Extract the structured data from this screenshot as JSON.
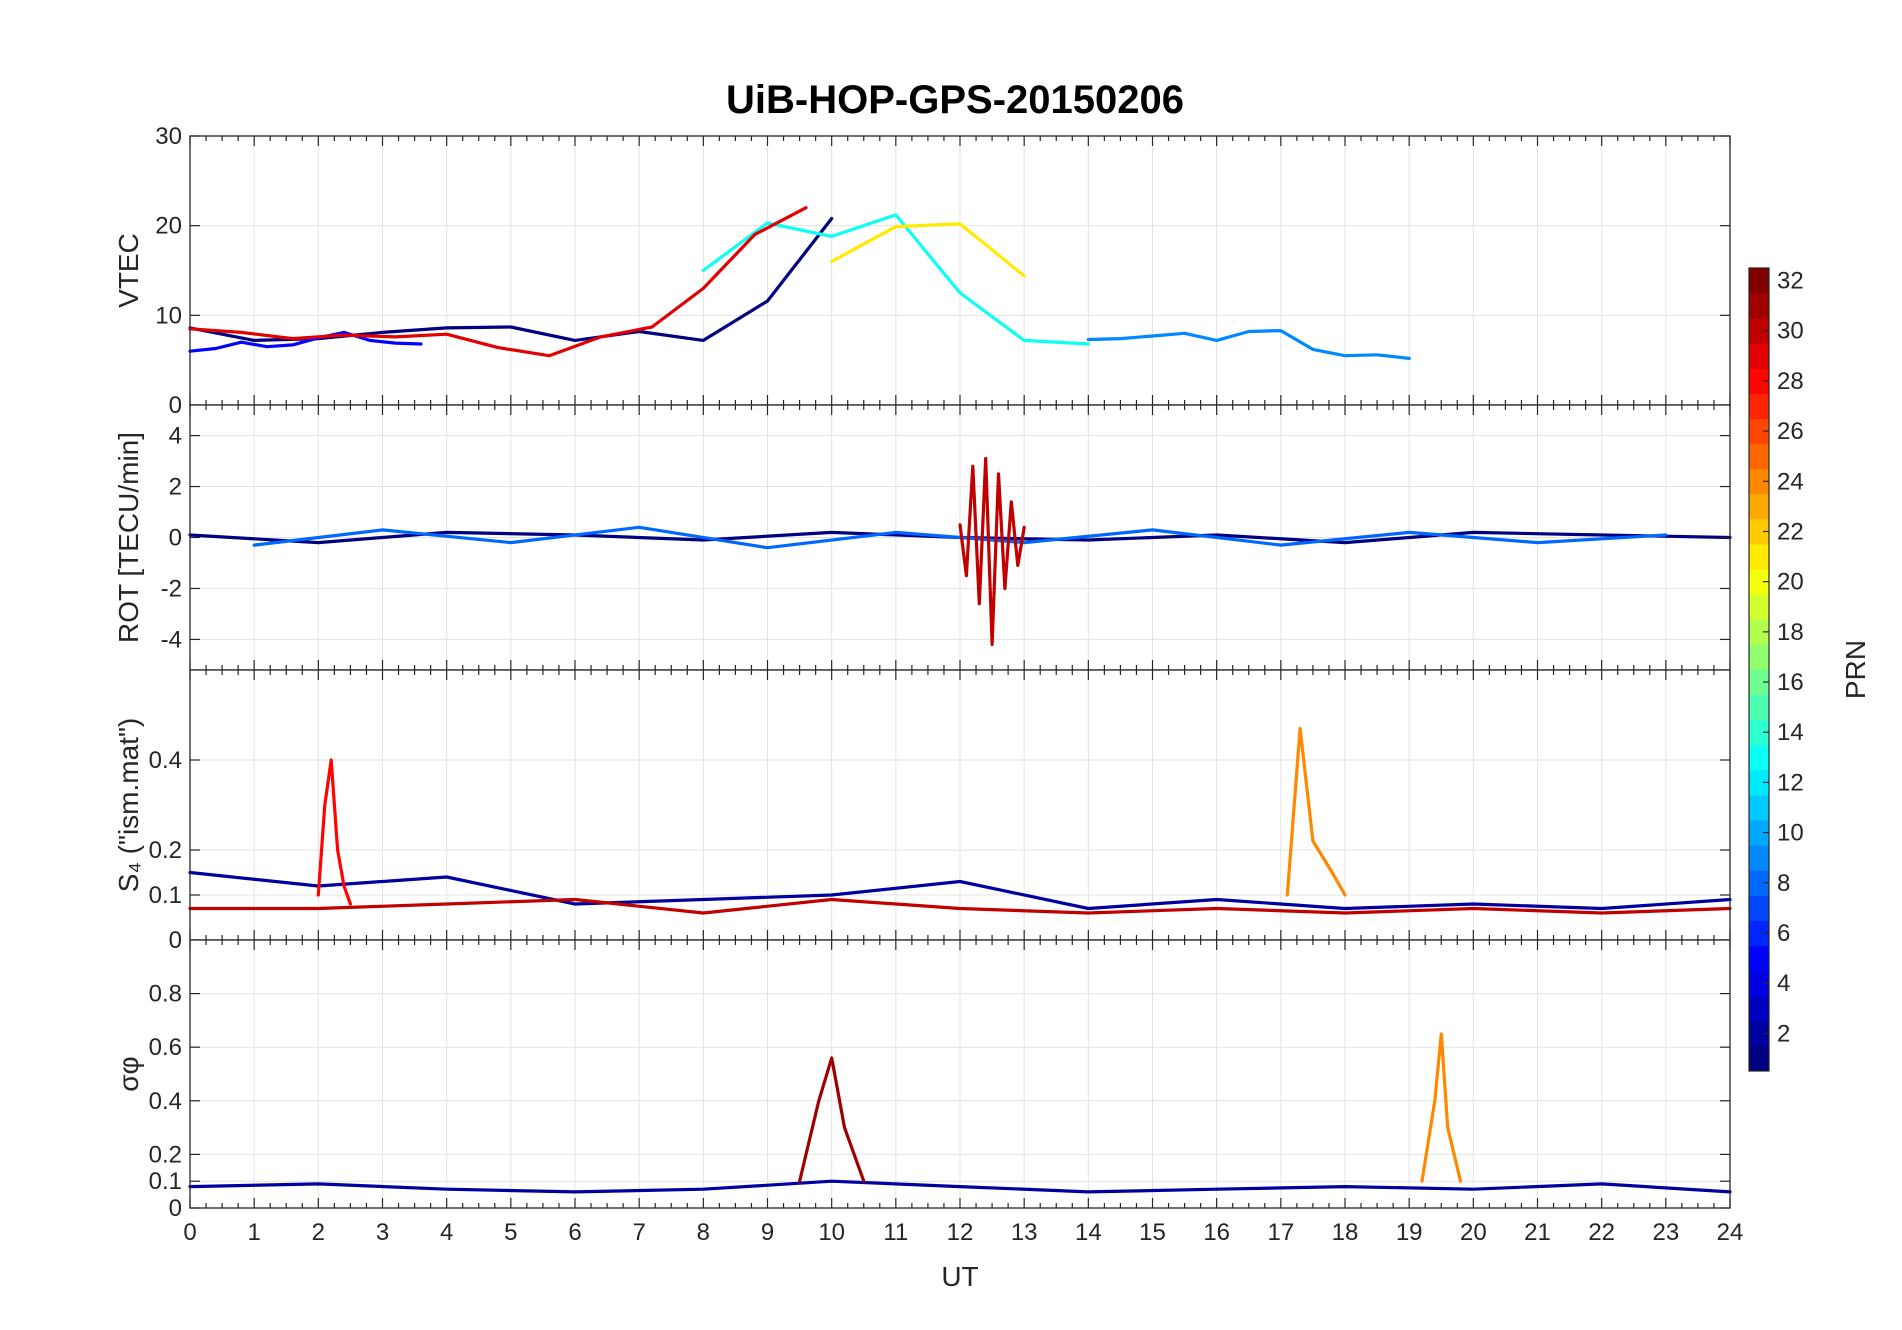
{
  "figure": {
    "title": "UiB-HOP-GPS-20150206",
    "colors": {
      "background": "#ffffff",
      "axes": "#262626",
      "grid": "#e3e3e3"
    }
  },
  "chart_data": [
    {
      "type": "line",
      "panel": "VTEC",
      "ylabel": "VTEC",
      "xlabel": "",
      "xlim": [
        0,
        24
      ],
      "ylim": [
        0,
        30
      ],
      "yticks": [
        0,
        10,
        20,
        30
      ],
      "grid": true,
      "series": [
        {
          "prn": 1,
          "x": [
            0.0,
            1.0,
            2.0,
            3.0,
            4.0,
            5.0,
            6.0,
            7.0,
            8.0,
            9.0,
            10.0
          ],
          "y": [
            8.6,
            7.2,
            7.4,
            8.1,
            8.6,
            8.7,
            7.2,
            8.2,
            7.2,
            11.6,
            20.8
          ]
        },
        {
          "prn": 5,
          "x": [
            0.0,
            0.4,
            0.8,
            1.2,
            1.6,
            2.0,
            2.4,
            2.8,
            3.2,
            3.6
          ],
          "y": [
            6.0,
            6.3,
            7.0,
            6.5,
            6.7,
            7.5,
            8.1,
            7.2,
            6.9,
            6.8
          ]
        },
        {
          "prn": 9,
          "x": [
            14.0,
            14.5,
            15.0,
            15.5,
            16.0,
            16.5,
            17.0,
            17.5,
            18.0,
            18.5,
            19.0
          ],
          "y": [
            7.3,
            7.4,
            7.7,
            8.0,
            7.2,
            8.2,
            8.3,
            6.2,
            5.5,
            5.6,
            5.2
          ]
        },
        {
          "prn": 13,
          "x": [
            8.0,
            9.0,
            10.0,
            11.0,
            12.0,
            13.0,
            14.0
          ],
          "y": [
            15.0,
            20.3,
            18.8,
            21.2,
            12.5,
            7.2,
            6.8
          ]
        },
        {
          "prn": 21,
          "x": [
            10.0,
            11.0,
            12.0,
            13.0
          ],
          "y": [
            16.0,
            19.9,
            20.2,
            14.4
          ]
        },
        {
          "prn": 29,
          "x": [
            0.0,
            0.8,
            1.6,
            2.4,
            3.2,
            4.0,
            4.8,
            5.6,
            6.4,
            7.2,
            8.0,
            8.8,
            9.6
          ],
          "y": [
            8.5,
            8.1,
            7.4,
            7.8,
            7.6,
            7.9,
            6.4,
            5.5,
            7.6,
            8.7,
            13.0,
            19.0,
            22.0
          ]
        }
      ]
    },
    {
      "type": "line",
      "panel": "ROT",
      "ylabel": "ROT [TECU/min]",
      "xlabel": "",
      "xlim": [
        0,
        24
      ],
      "ylim": [
        -5.2,
        5.2
      ],
      "yticks": [
        -4,
        -2,
        0,
        2,
        4
      ],
      "grid": true,
      "series": [
        {
          "prn": 1,
          "x": [
            0,
            2,
            4,
            6,
            8,
            10,
            12,
            14,
            16,
            18,
            20,
            22,
            24
          ],
          "y": [
            0.1,
            -0.2,
            0.2,
            0.1,
            -0.1,
            0.2,
            0.0,
            -0.1,
            0.1,
            -0.2,
            0.2,
            0.1,
            0.0
          ]
        },
        {
          "prn": 8,
          "x": [
            1,
            3,
            5,
            7,
            9,
            11,
            13,
            15,
            17,
            19,
            21,
            23
          ],
          "y": [
            -0.3,
            0.3,
            -0.2,
            0.4,
            -0.4,
            0.2,
            -0.2,
            0.3,
            -0.3,
            0.2,
            -0.2,
            0.1
          ]
        },
        {
          "prn": 30,
          "x": [
            12.0,
            12.1,
            12.2,
            12.3,
            12.4,
            12.5,
            12.6,
            12.7,
            12.8,
            12.9,
            13.0
          ],
          "y": [
            0.5,
            -1.5,
            2.8,
            -2.6,
            3.1,
            -4.2,
            2.5,
            -2.0,
            1.4,
            -1.1,
            0.4
          ]
        }
      ]
    },
    {
      "type": "line",
      "panel": "S4",
      "ylabel": "S₄ (\"ism.mat\")",
      "xlabel": "",
      "xlim": [
        0,
        24
      ],
      "ylim": [
        0,
        0.6
      ],
      "yticks": [
        0,
        0.1,
        0.2,
        0.4
      ],
      "grid": true,
      "series": [
        {
          "prn": 2,
          "x": [
            0,
            2,
            4,
            6,
            8,
            10,
            12,
            14,
            16,
            18,
            20,
            22,
            24
          ],
          "y": [
            0.15,
            0.12,
            0.14,
            0.08,
            0.09,
            0.1,
            0.13,
            0.07,
            0.09,
            0.07,
            0.08,
            0.07,
            0.09
          ]
        },
        {
          "prn": 28,
          "x": [
            2.0,
            2.1,
            2.2,
            2.3,
            2.4,
            2.5
          ],
          "y": [
            0.1,
            0.3,
            0.4,
            0.2,
            0.12,
            0.08
          ]
        },
        {
          "prn": 24,
          "x": [
            17.1,
            17.3,
            17.5,
            17.8,
            18.0
          ],
          "y": [
            0.1,
            0.47,
            0.22,
            0.15,
            0.1
          ]
        },
        {
          "prn": 30,
          "x": [
            0,
            2,
            4,
            6,
            8,
            10,
            12,
            14,
            16,
            18,
            20,
            22,
            24
          ],
          "y": [
            0.07,
            0.07,
            0.08,
            0.09,
            0.06,
            0.09,
            0.07,
            0.06,
            0.07,
            0.06,
            0.07,
            0.06,
            0.07
          ]
        }
      ]
    },
    {
      "type": "line",
      "panel": "sigma_phi",
      "ylabel": "σφ",
      "xlabel": "UT",
      "xlim": [
        0,
        24
      ],
      "ylim": [
        0,
        1
      ],
      "yticks": [
        0,
        0.1,
        0.2,
        0.4,
        0.6,
        0.8
      ],
      "xticks": [
        0,
        1,
        2,
        3,
        4,
        5,
        6,
        7,
        8,
        9,
        10,
        11,
        12,
        13,
        14,
        15,
        16,
        17,
        18,
        19,
        20,
        21,
        22,
        23,
        24
      ],
      "grid": true,
      "series": [
        {
          "prn": 2,
          "x": [
            0,
            2,
            4,
            6,
            8,
            10,
            12,
            14,
            16,
            18,
            20,
            22,
            24
          ],
          "y": [
            0.08,
            0.09,
            0.07,
            0.06,
            0.07,
            0.1,
            0.08,
            0.06,
            0.07,
            0.08,
            0.07,
            0.09,
            0.06
          ]
        },
        {
          "prn": 24,
          "x": [
            19.2,
            19.4,
            19.5,
            19.6,
            19.8
          ],
          "y": [
            0.1,
            0.4,
            0.65,
            0.3,
            0.1
          ]
        },
        {
          "prn": 31,
          "x": [
            9.5,
            9.8,
            10.0,
            10.2,
            10.5
          ],
          "y": [
            0.1,
            0.4,
            0.56,
            0.3,
            0.1
          ]
        }
      ]
    }
  ],
  "colorbar": {
    "label": "PRN",
    "ticks": [
      "2",
      "4",
      "6",
      "8",
      "10",
      "12",
      "14",
      "16",
      "18",
      "20",
      "22",
      "24",
      "26",
      "28",
      "30",
      "32"
    ],
    "range": [
      1,
      32
    ],
    "colormap": "jet"
  }
}
